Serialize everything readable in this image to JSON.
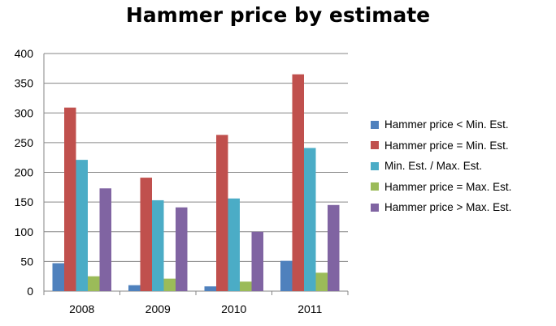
{
  "chart_data": {
    "type": "bar",
    "title": "Hammer price by estimate",
    "xlabel": "",
    "ylabel": "",
    "ylim": [
      0,
      400
    ],
    "yticks": [
      "0",
      "50",
      "100",
      "150",
      "200",
      "250",
      "300",
      "350",
      "400"
    ],
    "grid": true,
    "legend_position": "right",
    "categories": [
      "2008",
      "2009",
      "2010",
      "2011"
    ],
    "series": [
      {
        "name": "Hammer price < Min. Est.",
        "color": "#4f81bd",
        "values": [
          47,
          10,
          8,
          51
        ]
      },
      {
        "name": "Hammer price = Min. Est.",
        "color": "#c0504d",
        "values": [
          309,
          191,
          263,
          365
        ]
      },
      {
        "name": "Min. Est. / Max. Est.",
        "color": "#4bacc6",
        "values": [
          221,
          153,
          156,
          241
        ]
      },
      {
        "name": "Hammer price = Max. Est.",
        "color": "#9bbb59",
        "values": [
          25,
          21,
          16,
          31
        ]
      },
      {
        "name": "Hammer price > Max. Est.",
        "color": "#8064a2",
        "values": [
          173,
          141,
          100,
          145
        ]
      }
    ]
  }
}
